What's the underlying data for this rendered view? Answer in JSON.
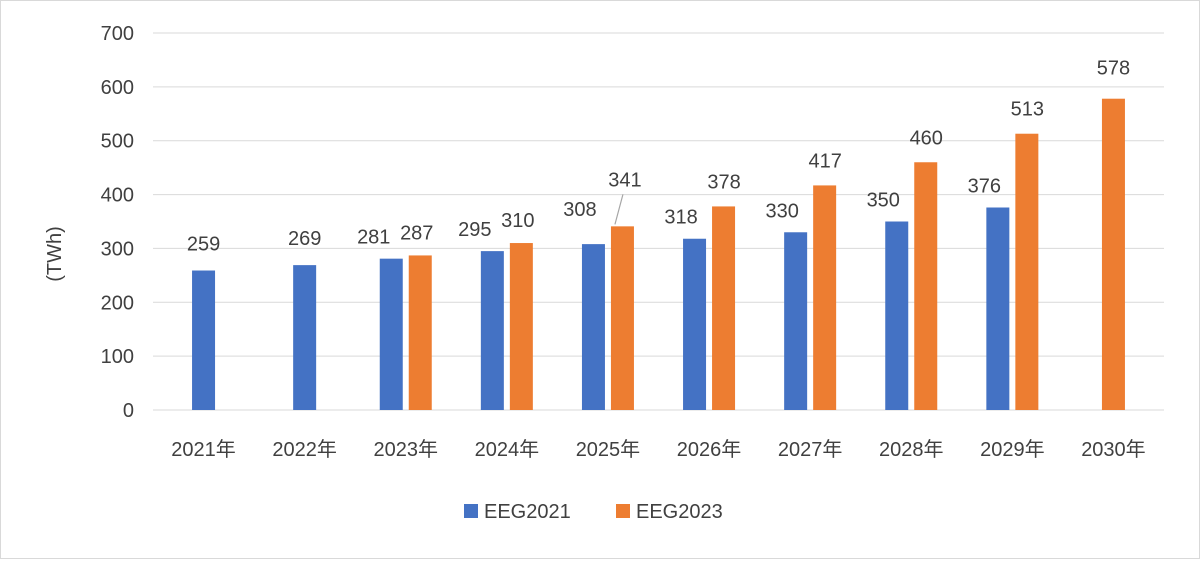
{
  "chart_data": {
    "type": "bar",
    "ylabel": "(TWh)",
    "ylim": [
      0,
      700
    ],
    "yticks": [
      0,
      100,
      200,
      300,
      400,
      500,
      600,
      700
    ],
    "categories": [
      "2021年",
      "2022年",
      "2023年",
      "2024年",
      "2025年",
      "2026年",
      "2027年",
      "2028年",
      "2029年",
      "2030年"
    ],
    "series": [
      {
        "name": "EEG2021",
        "color": "#4472C4",
        "values": [
          259,
          269,
          281,
          295,
          308,
          318,
          330,
          350,
          376,
          null
        ]
      },
      {
        "name": "EEG2023",
        "color": "#ED7D31",
        "values": [
          null,
          null,
          287,
          310,
          341,
          378,
          417,
          460,
          513,
          578
        ]
      }
    ],
    "grid": true,
    "gridline_color": "#d9d9d9",
    "legend_position": "bottom"
  }
}
